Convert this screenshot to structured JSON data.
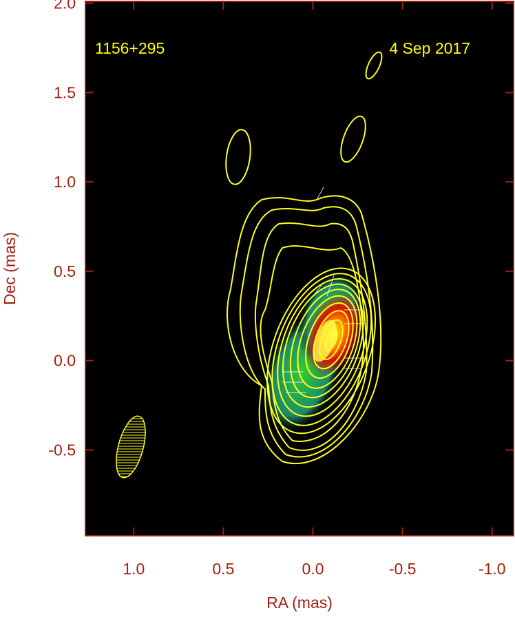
{
  "chart_data": {
    "type": "image",
    "annotations": [
      "1156+295",
      "4 Sep 2017"
    ],
    "x_label": "RA (mas)",
    "y_label": "Dec (mas)",
    "xlim": [
      1.27,
      -1.12
    ],
    "ylim": [
      -0.98,
      2.01
    ],
    "xticks": [
      {
        "value": 1,
        "label": "1.0"
      },
      {
        "value": 0.5,
        "label": "0.5"
      },
      {
        "value": 0,
        "label": "0.0"
      },
      {
        "value": -0.5,
        "label": "-0.5"
      },
      {
        "value": -1,
        "label": "-1.0"
      }
    ],
    "yticks": [
      {
        "value": 2,
        "label": "2.0"
      },
      {
        "value": 1.5,
        "label": "1.5"
      },
      {
        "value": 1,
        "label": "1.0"
      },
      {
        "value": 0.5,
        "label": "0.5"
      },
      {
        "value": 0,
        "label": "0.0"
      },
      {
        "value": -0.5,
        "label": "-0.5"
      }
    ],
    "axis_color": "#a0200f",
    "annotation_color": "#ffff00"
  }
}
